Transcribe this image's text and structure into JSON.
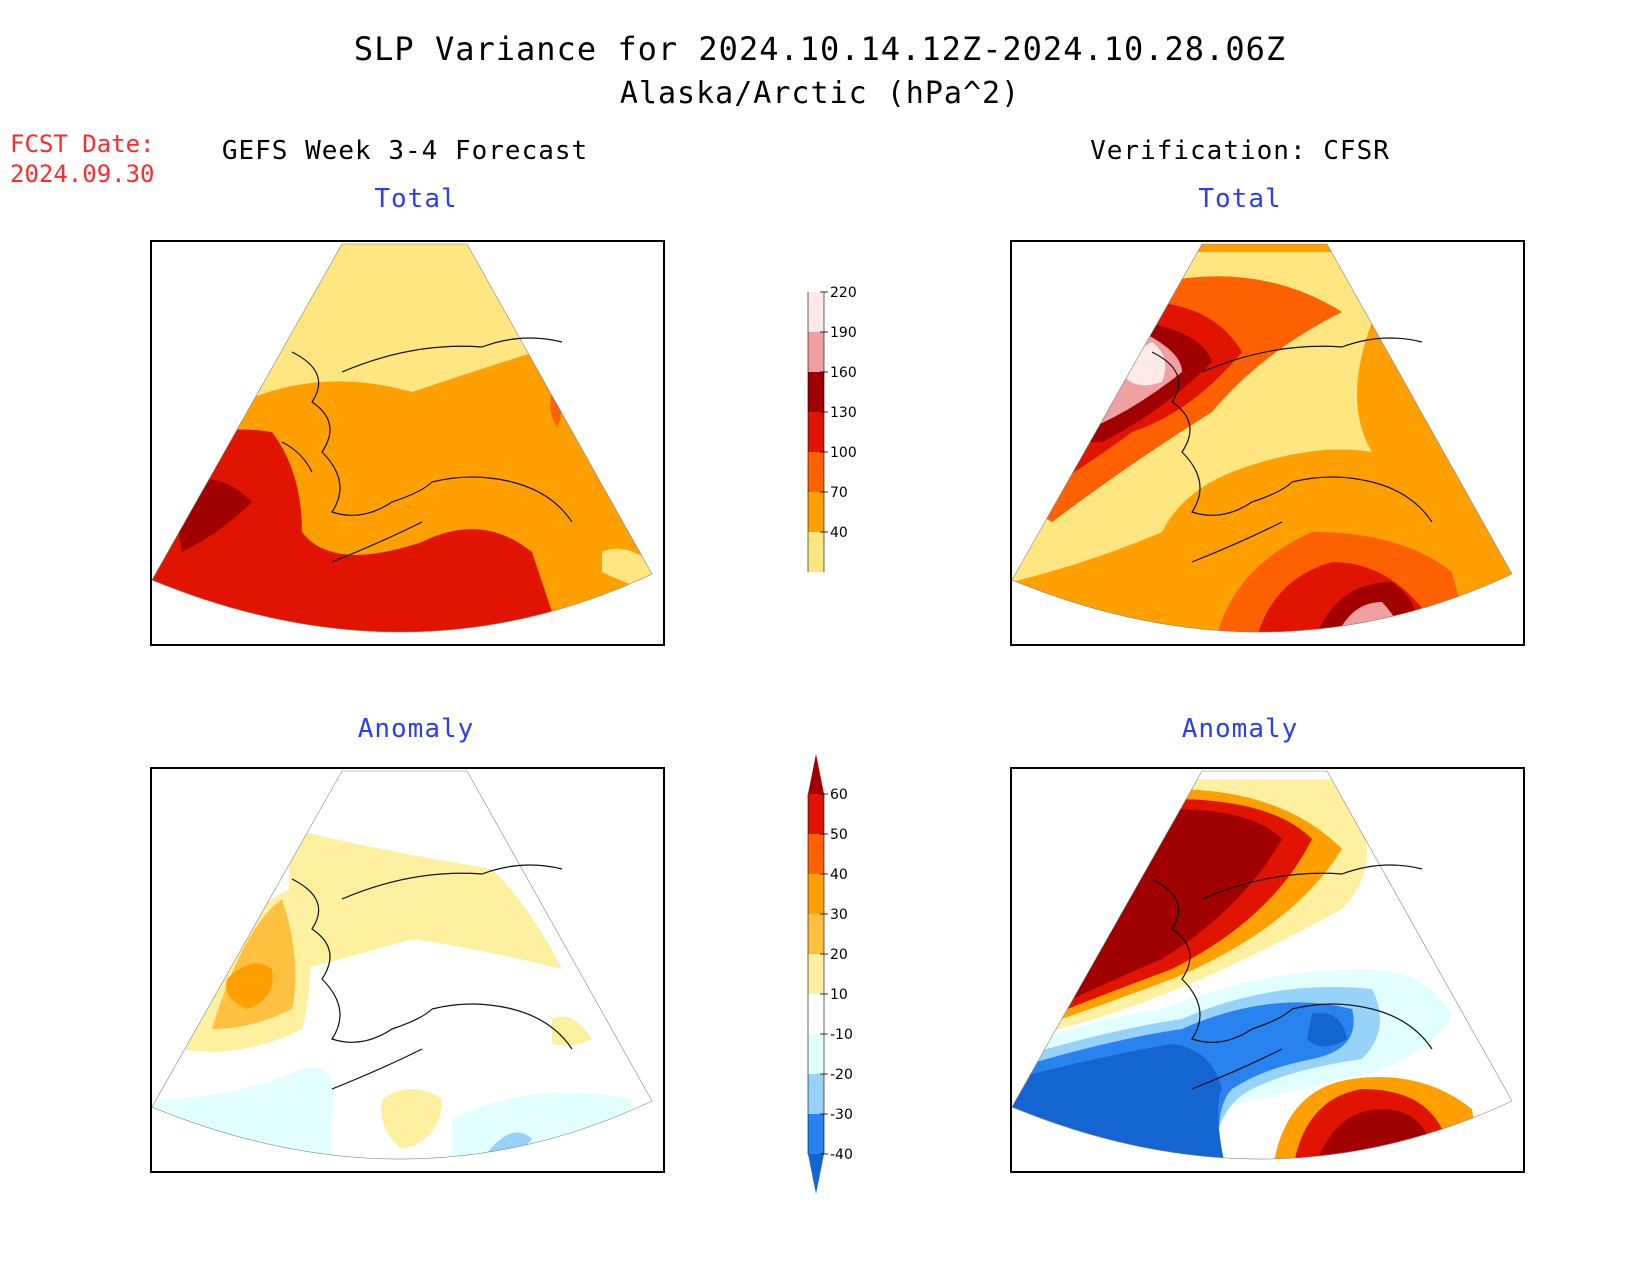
{
  "header": {
    "title": "SLP Variance for 2024.10.14.12Z-2024.10.28.06Z",
    "subtitle": "Alaska/Arctic (hPa^2)"
  },
  "forecast_date": {
    "label": "FCST Date:",
    "value": "2024.09.30"
  },
  "panels": {
    "left_heading": "GEFS Week 3-4 Forecast",
    "right_heading": "Verification: CFSR",
    "total_label": "Total",
    "anomaly_label": "Anomaly"
  },
  "colorbars": {
    "total": {
      "ticks": [
        "40",
        "70",
        "100",
        "130",
        "160",
        "190",
        "220"
      ],
      "colors": [
        "#ffe680",
        "#ffa000",
        "#ff6000",
        "#e01400",
        "#a00000",
        "#f0a0a0",
        "#ffe8e8"
      ]
    },
    "anomaly": {
      "ticks": [
        "-40",
        "-30",
        "-20",
        "-10",
        "10",
        "20",
        "30",
        "40",
        "50",
        "60"
      ],
      "colors": [
        "#1464d2",
        "#2882f0",
        "#96d2fa",
        "#e1ffff",
        "#ffffff",
        "#fff0a0",
        "#ffc040",
        "#ffa000",
        "#ff6000",
        "#e01400",
        "#a00000"
      ]
    }
  },
  "colors": {
    "title_text": "#000000",
    "fcst_text": "#ff2a2a",
    "section_text": "#2a3cff"
  }
}
